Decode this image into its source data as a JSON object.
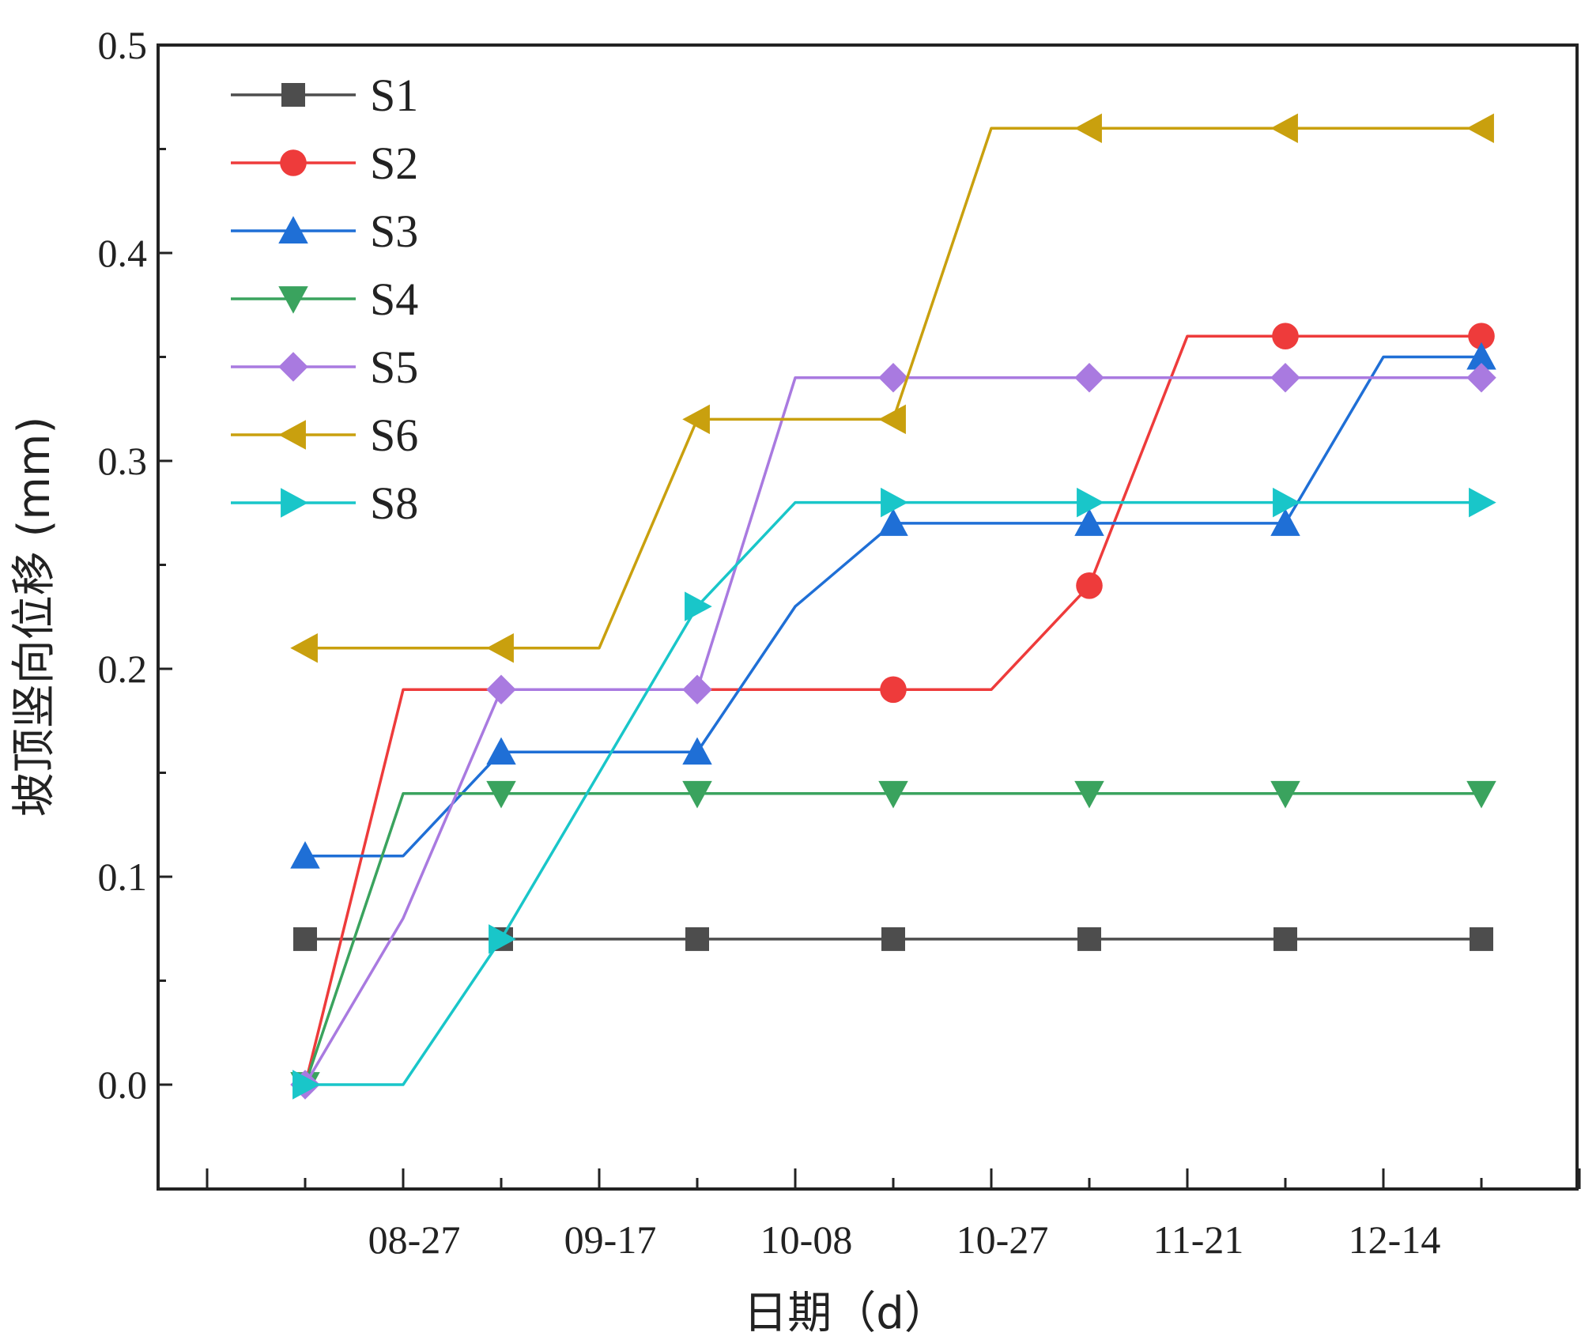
{
  "chart_data": {
    "type": "line",
    "xlabel": "日期（d）",
    "ylabel": "坡顶竖向位移 (mm)",
    "ylim": [
      -0.05,
      0.5
    ],
    "yticks": [
      "0.0",
      "0.1",
      "0.2",
      "0.3",
      "0.4",
      "0.5"
    ],
    "xticks": [
      "08-27",
      "09-17",
      "10-08",
      "10-27",
      "11-21",
      "12-14"
    ],
    "legend_position": "top-left",
    "series": [
      {
        "name": "S1",
        "color": "#4d4d4d",
        "marker": "square",
        "points": [
          [
            0,
            0.07
          ],
          [
            1,
            0.07
          ],
          [
            2,
            0.07
          ],
          [
            3,
            0.07
          ],
          [
            4,
            0.07
          ],
          [
            5,
            0.07
          ],
          [
            6,
            0.07
          ],
          [
            7,
            0.07
          ],
          [
            8,
            0.07
          ],
          [
            9,
            0.07
          ],
          [
            10,
            0.07
          ],
          [
            11,
            0.07
          ],
          [
            12,
            0.07
          ]
        ],
        "marked": [
          0,
          2,
          4,
          6,
          8,
          10,
          12
        ]
      },
      {
        "name": "S2",
        "color": "#ee3b3b",
        "marker": "circle",
        "points": [
          [
            0,
            0
          ],
          [
            1,
            0.19
          ],
          [
            2,
            0.19
          ],
          [
            3,
            0.19
          ],
          [
            4,
            0.19
          ],
          [
            5,
            0.19
          ],
          [
            6,
            0.19
          ],
          [
            7,
            0.19
          ],
          [
            8,
            0.24
          ],
          [
            9,
            0.36
          ],
          [
            10,
            0.36
          ],
          [
            11,
            0.36
          ],
          [
            12,
            0.36
          ]
        ],
        "marked": [
          6,
          8,
          10,
          12
        ]
      },
      {
        "name": "S3",
        "color": "#1f6fd6",
        "marker": "triangle-up",
        "points": [
          [
            0,
            0.11
          ],
          [
            1,
            0.11
          ],
          [
            2,
            0.16
          ],
          [
            3,
            0.16
          ],
          [
            4,
            0.16
          ],
          [
            5,
            0.23
          ],
          [
            6,
            0.27
          ],
          [
            7,
            0.27
          ],
          [
            8,
            0.27
          ],
          [
            9,
            0.27
          ],
          [
            10,
            0.27
          ],
          [
            11,
            0.35
          ],
          [
            12,
            0.35
          ]
        ],
        "marked": [
          0,
          2,
          4,
          6,
          8,
          10,
          12
        ]
      },
      {
        "name": "S4",
        "color": "#3aa35e",
        "marker": "triangle-down",
        "points": [
          [
            0,
            0
          ],
          [
            1,
            0.14
          ],
          [
            2,
            0.14
          ],
          [
            3,
            0.14
          ],
          [
            4,
            0.14
          ],
          [
            5,
            0.14
          ],
          [
            6,
            0.14
          ],
          [
            7,
            0.14
          ],
          [
            8,
            0.14
          ],
          [
            9,
            0.14
          ],
          [
            10,
            0.14
          ],
          [
            11,
            0.14
          ],
          [
            12,
            0.14
          ]
        ],
        "marked": [
          0,
          2,
          4,
          6,
          8,
          10,
          12
        ]
      },
      {
        "name": "S5",
        "color": "#a97ae0",
        "marker": "diamond",
        "points": [
          [
            0,
            0
          ],
          [
            1,
            0.08
          ],
          [
            2,
            0.19
          ],
          [
            3,
            0.19
          ],
          [
            4,
            0.19
          ],
          [
            5,
            0.34
          ],
          [
            6,
            0.34
          ],
          [
            7,
            0.34
          ],
          [
            8,
            0.34
          ],
          [
            9,
            0.34
          ],
          [
            10,
            0.34
          ],
          [
            11,
            0.34
          ],
          [
            12,
            0.34
          ]
        ],
        "marked": [
          0,
          2,
          4,
          6,
          8,
          10,
          12
        ]
      },
      {
        "name": "S6",
        "color": "#c9a00e",
        "marker": "triangle-left",
        "points": [
          [
            0,
            0.21
          ],
          [
            1,
            0.21
          ],
          [
            2,
            0.21
          ],
          [
            3,
            0.21
          ],
          [
            4,
            0.32
          ],
          [
            5,
            0.32
          ],
          [
            6,
            0.32
          ],
          [
            7,
            0.46
          ],
          [
            8,
            0.46
          ],
          [
            9,
            0.46
          ],
          [
            10,
            0.46
          ],
          [
            11,
            0.46
          ],
          [
            12,
            0.46
          ]
        ],
        "marked": [
          0,
          2,
          4,
          6,
          8,
          10,
          12
        ]
      },
      {
        "name": "S8",
        "color": "#19c6c9",
        "marker": "triangle-right",
        "points": [
          [
            0,
            0
          ],
          [
            1,
            0
          ],
          [
            2,
            0.07
          ],
          [
            3,
            0.15
          ],
          [
            4,
            0.23
          ],
          [
            5,
            0.28
          ],
          [
            6,
            0.28
          ],
          [
            7,
            0.28
          ],
          [
            8,
            0.28
          ],
          [
            9,
            0.28
          ],
          [
            10,
            0.28
          ],
          [
            11,
            0.28
          ],
          [
            12,
            0.28
          ]
        ],
        "marked": [
          0,
          2,
          4,
          6,
          8,
          10,
          12
        ]
      }
    ]
  }
}
